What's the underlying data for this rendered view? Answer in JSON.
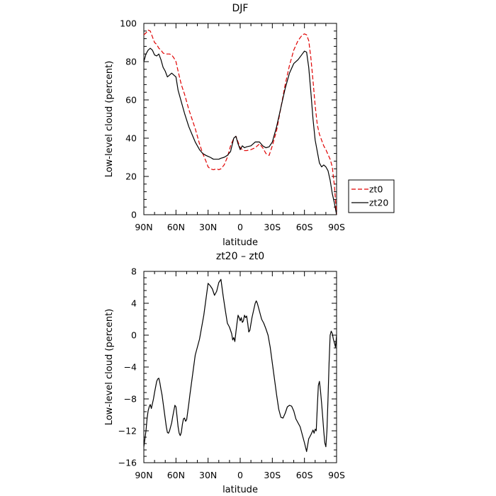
{
  "chart_data": [
    {
      "type": "line",
      "title": "DJF",
      "xlabel": "latitude",
      "ylabel": "Low-level cloud (percent)",
      "xlim": [
        -90,
        90
      ],
      "ylim": [
        0,
        100
      ],
      "x_ticks": [
        -90,
        -60,
        -30,
        0,
        30,
        60,
        90
      ],
      "x_tick_labels": [
        "90N",
        "60N",
        "30N",
        "0",
        "30S",
        "60S",
        "90S"
      ],
      "y_ticks": [
        0,
        20,
        40,
        60,
        80,
        100
      ],
      "y_tick_labels": [
        "0",
        "20",
        "40",
        "60",
        "80",
        "100"
      ],
      "grid": false,
      "legend_position": "outside-right",
      "series": [
        {
          "name": "zt0",
          "color": "#e00000",
          "dash": "dashed",
          "x": [
            -90,
            -88,
            -86,
            -84,
            -82,
            -80,
            -78,
            -76,
            -74,
            -72,
            -70,
            -68,
            -66,
            -64,
            -62,
            -60,
            -58,
            -55,
            -52,
            -48,
            -45,
            -42,
            -38,
            -35,
            -32,
            -30,
            -28,
            -25,
            -22,
            -20,
            -18,
            -15,
            -12,
            -9,
            -6,
            -4,
            -2,
            0,
            2,
            4,
            6,
            10,
            14,
            18,
            21,
            24,
            27,
            30,
            34,
            38,
            42,
            46,
            50,
            54,
            58,
            60,
            62,
            64,
            66,
            68,
            70,
            72,
            74,
            76,
            78,
            80,
            82,
            84,
            86,
            88,
            90
          ],
          "y": [
            94,
            95,
            96.5,
            96,
            93,
            90,
            89,
            87,
            86,
            84.5,
            84,
            84,
            84,
            83.5,
            82,
            80,
            75,
            68,
            63,
            55,
            50,
            45,
            37,
            32,
            28,
            25,
            24,
            23.5,
            24,
            23.5,
            24,
            26,
            30,
            36,
            40,
            41,
            38,
            35,
            34,
            33.5,
            33.5,
            34,
            35,
            37,
            35,
            32,
            31,
            36,
            44,
            56,
            68,
            78,
            86,
            91,
            94,
            94.5,
            94,
            91,
            82,
            70,
            57,
            47,
            42,
            39,
            36,
            34,
            31.5,
            29,
            25,
            15,
            0
          ]
        },
        {
          "name": "zt20",
          "color": "#000000",
          "dash": "solid",
          "x": [
            -90,
            -88,
            -86,
            -84,
            -82,
            -80,
            -78,
            -76,
            -74,
            -72,
            -70,
            -68,
            -66,
            -64,
            -62,
            -60,
            -58,
            -55,
            -52,
            -48,
            -45,
            -42,
            -38,
            -35,
            -32,
            -30,
            -28,
            -25,
            -22,
            -20,
            -18,
            -15,
            -12,
            -9,
            -6,
            -4,
            -2,
            0,
            2,
            4,
            6,
            10,
            14,
            18,
            21,
            24,
            27,
            30,
            34,
            38,
            42,
            46,
            50,
            54,
            58,
            60,
            62,
            64,
            66,
            68,
            70,
            72,
            74,
            76,
            78,
            80,
            82,
            84,
            86,
            88,
            90
          ],
          "y": [
            80,
            84,
            86,
            87,
            86,
            83.5,
            83,
            84,
            81,
            77,
            75,
            72,
            73,
            74,
            73,
            72,
            65,
            59,
            53,
            46,
            42,
            38,
            34,
            32,
            31,
            30.5,
            30,
            29,
            29,
            29,
            29.5,
            30,
            31,
            33,
            40,
            41,
            37,
            34,
            36,
            35,
            35.5,
            36,
            38,
            38,
            36,
            35,
            35.5,
            38,
            46,
            56,
            66,
            74,
            79,
            81,
            84,
            85.5,
            85,
            77,
            64,
            50,
            39,
            33,
            27,
            25,
            26,
            25,
            23,
            18,
            11,
            6,
            0
          ]
        }
      ]
    },
    {
      "type": "line",
      "title": "zt20 – zt0",
      "xlabel": "latitude",
      "ylabel": "Low-level cloud (percent)",
      "xlim": [
        -90,
        90
      ],
      "ylim": [
        -16,
        8
      ],
      "x_ticks": [
        -90,
        -60,
        -30,
        0,
        30,
        60,
        90
      ],
      "x_tick_labels": [
        "90N",
        "60N",
        "30N",
        "0",
        "30S",
        "60S",
        "90S"
      ],
      "y_ticks": [
        -16,
        -12,
        -8,
        -4,
        0,
        4,
        8
      ],
      "y_tick_labels": [
        "−16",
        "−12",
        "−8",
        "−4",
        "0",
        "4",
        "8"
      ],
      "grid": false,
      "series": [
        {
          "name": "",
          "color": "#000000",
          "dash": "solid",
          "x": [
            -90,
            -89,
            -88,
            -87,
            -86,
            -85,
            -84,
            -83,
            -82,
            -81,
            -80,
            -79,
            -78,
            -77,
            -76,
            -75,
            -74,
            -73,
            -72,
            -71,
            -70,
            -69,
            -68,
            -67,
            -66,
            -65,
            -64,
            -63,
            -62,
            -61,
            -60,
            -59,
            -58,
            -57,
            -56,
            -55,
            -54,
            -53,
            -52,
            -51,
            -50,
            -49,
            -48,
            -47,
            -46,
            -45,
            -44,
            -43,
            -42,
            -40,
            -38,
            -36,
            -34,
            -32,
            -30,
            -28,
            -26,
            -24,
            -22,
            -20,
            -18,
            -16,
            -14,
            -12,
            -10,
            -8,
            -7,
            -6,
            -5,
            -4,
            -3,
            -2,
            -1,
            0,
            1,
            2,
            3,
            4,
            5,
            6,
            7,
            8,
            9,
            10,
            11,
            12,
            13,
            14,
            15,
            16,
            17,
            18,
            20,
            22,
            24,
            26,
            28,
            30,
            32,
            34,
            36,
            38,
            40,
            42,
            44,
            46,
            48,
            50,
            52,
            54,
            56,
            58,
            60,
            62,
            64,
            66,
            67,
            68,
            69,
            70,
            71,
            72,
            73,
            74,
            75,
            76,
            77,
            78,
            79,
            80,
            81,
            82,
            83,
            84,
            85,
            86,
            87,
            88,
            89,
            90
          ],
          "y": [
            -14,
            -13,
            -12,
            -10.5,
            -9.5,
            -9,
            -8.7,
            -9.2,
            -8.6,
            -8,
            -7.2,
            -6.5,
            -5.8,
            -5.5,
            -5.4,
            -6,
            -6.8,
            -7.5,
            -8.5,
            -9.5,
            -10.5,
            -11.5,
            -12.2,
            -12.3,
            -12,
            -11.5,
            -11,
            -10.2,
            -9.5,
            -8.8,
            -9,
            -10.2,
            -11.5,
            -12.3,
            -12.6,
            -12.2,
            -11.2,
            -10.5,
            -10.4,
            -10.8,
            -10.6,
            -9.6,
            -8.6,
            -7.5,
            -6.5,
            -5.5,
            -4.5,
            -3.5,
            -2.5,
            -1.5,
            -0.5,
            1,
            2.5,
            4.5,
            6.5,
            6.2,
            5.8,
            5,
            5.5,
            6.6,
            7,
            5,
            3.2,
            1.5,
            1,
            0.2,
            -0.6,
            -0.3,
            -0.8,
            0.4,
            1.5,
            2.5,
            2.2,
            1.8,
            2.2,
            1.6,
            1.8,
            2.5,
            2.2,
            2.4,
            1.5,
            0.4,
            0.6,
            1.4,
            2.2,
            2.8,
            3.4,
            4,
            4.3,
            4,
            3.5,
            3,
            2,
            1.5,
            0.8,
            0,
            -1.5,
            -3.5,
            -5.5,
            -7.5,
            -9.3,
            -10.3,
            -10.4,
            -9.8,
            -9,
            -8.8,
            -8.9,
            -9.5,
            -10.5,
            -11,
            -11.5,
            -12.5,
            -13.5,
            -14.6,
            -13,
            -12.5,
            -12.2,
            -11.9,
            -12.3,
            -11.8,
            -12,
            -9,
            -6.3,
            -5.8,
            -7,
            -8.5,
            -10.2,
            -12,
            -13.5,
            -14,
            -12,
            -8,
            -3.5,
            0,
            0.5,
            0.2,
            -0.5,
            -1,
            -1.5,
            0
          ]
        }
      ]
    }
  ]
}
